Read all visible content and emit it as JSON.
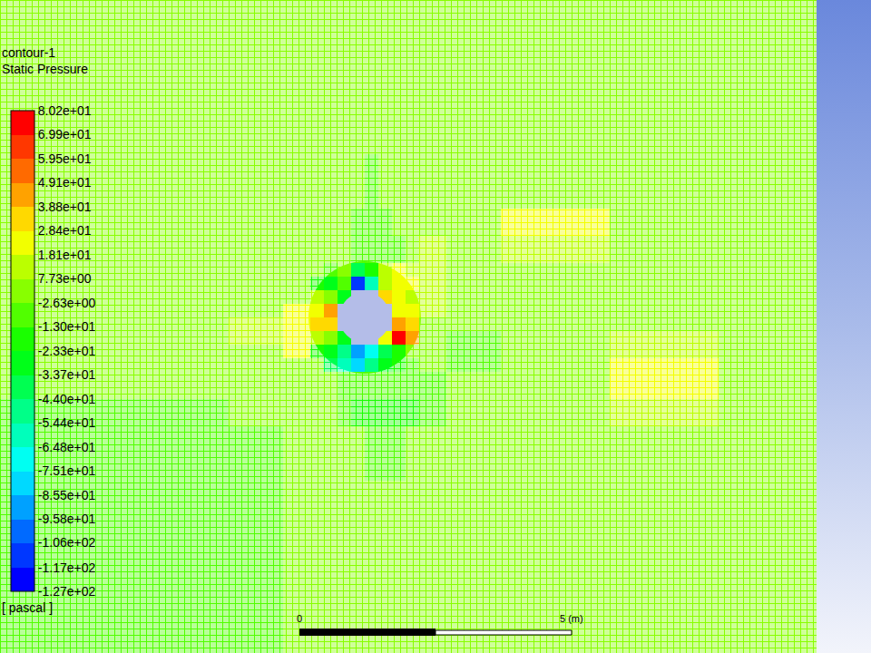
{
  "chart_data": {
    "type": "heatmap",
    "title": "contour-1",
    "subtitle": "Static Pressure",
    "x": [
      -6.7,
      -5.5,
      -4.5,
      -3.5,
      -2.5,
      -1.5,
      -1.0,
      -0.75,
      -0.5,
      -0.25,
      0,
      0.25,
      0.5,
      0.75,
      1.0,
      1.5,
      2.5,
      3.5,
      4.5,
      5.5,
      6.5,
      7.5,
      8.3
    ],
    "y": [
      -6.17,
      -5,
      -4,
      -3,
      -2,
      -1.5,
      -1.0,
      -0.75,
      -0.5,
      -0.25,
      0,
      0.25,
      0.5,
      0.75,
      1.0,
      1.5,
      2,
      3,
      4,
      5,
      5.83
    ],
    "cells": [
      [
        -5,
        -5,
        -5,
        -5,
        -3,
        3,
        3,
        3,
        3,
        3,
        3,
        3,
        3,
        3,
        3,
        3,
        3,
        3,
        3,
        3,
        3,
        3
      ],
      [
        -5,
        -5,
        -5,
        -5,
        -3,
        3,
        3,
        3,
        3,
        3,
        3,
        3,
        3,
        3,
        3,
        3,
        3,
        3,
        3,
        3,
        3,
        3
      ],
      [
        -5,
        -5,
        -5,
        -5,
        -3,
        3,
        3,
        3,
        3,
        3,
        3,
        3,
        3,
        3,
        3,
        3,
        3,
        3,
        3,
        3,
        3,
        3
      ],
      [
        -5,
        -5,
        -5,
        -5,
        -3,
        3,
        3,
        3,
        3,
        3,
        -8,
        -8,
        -8,
        3,
        3,
        3,
        3,
        3,
        3,
        3,
        3,
        3
      ],
      [
        -5,
        -5,
        -5,
        -5,
        3,
        3,
        3,
        3,
        -8,
        -15,
        -15,
        -15,
        -15,
        -15,
        -8,
        3,
        3,
        3,
        15,
        15,
        3,
        3
      ],
      [
        3,
        3,
        3,
        3,
        3,
        3,
        3,
        3,
        -5,
        -12,
        -12,
        -12,
        -12,
        -12,
        -5,
        3,
        3,
        3,
        20,
        20,
        3,
        3
      ],
      [
        3,
        3,
        3,
        3,
        3,
        3,
        3,
        -40,
        -60,
        -85,
        -50,
        -30,
        -20,
        -5,
        3,
        -6,
        3,
        3,
        20,
        20,
        3,
        3
      ],
      [
        3,
        3,
        3,
        3,
        3,
        20,
        -15,
        -30,
        -50,
        -95,
        -70,
        -40,
        -15,
        5,
        3,
        -12,
        3,
        3,
        15,
        15,
        3,
        3
      ],
      [
        3,
        3,
        3,
        3,
        12,
        20,
        10,
        0,
        -25,
        null,
        null,
        20,
        75,
        40,
        5,
        -12,
        3,
        3,
        10,
        10,
        3,
        3
      ],
      [
        3,
        3,
        3,
        3,
        12,
        20,
        30,
        35,
        null,
        null,
        null,
        null,
        45,
        30,
        5,
        3,
        3,
        3,
        3,
        3,
        3,
        3
      ],
      [
        3,
        3,
        3,
        3,
        3,
        20,
        25,
        40,
        null,
        null,
        null,
        null,
        25,
        20,
        8,
        3,
        3,
        3,
        3,
        3,
        3,
        3
      ],
      [
        3,
        3,
        3,
        3,
        3,
        3,
        15,
        5,
        -30,
        null,
        null,
        30,
        20,
        15,
        10,
        3,
        3,
        3,
        3,
        3,
        3,
        3
      ],
      [
        3,
        3,
        3,
        3,
        3,
        3,
        -15,
        -25,
        -5,
        -110,
        -60,
        15,
        25,
        20,
        15,
        3,
        3,
        3,
        3,
        3,
        3,
        3
      ],
      [
        3,
        3,
        3,
        3,
        3,
        3,
        3,
        -10,
        5,
        -40,
        -20,
        10,
        20,
        8,
        15,
        3,
        3,
        3,
        3,
        3,
        3,
        3
      ],
      [
        3,
        3,
        3,
        3,
        3,
        3,
        3,
        3,
        3,
        -6,
        -6,
        -6,
        -6,
        3,
        10,
        3,
        12,
        12,
        3,
        3,
        3,
        3
      ],
      [
        3,
        3,
        3,
        3,
        3,
        3,
        3,
        3,
        3,
        -10,
        -10,
        -10,
        3,
        3,
        3,
        3,
        20,
        20,
        3,
        3,
        3,
        3
      ],
      [
        3,
        3,
        3,
        3,
        3,
        3,
        3,
        3,
        3,
        3,
        -5,
        3,
        3,
        3,
        3,
        3,
        3,
        3,
        3,
        3,
        3,
        3
      ],
      [
        3,
        3,
        3,
        3,
        3,
        3,
        3,
        3,
        3,
        3,
        3,
        3,
        3,
        3,
        3,
        3,
        3,
        3,
        3,
        3,
        3,
        3
      ],
      [
        3,
        3,
        3,
        3,
        3,
        3,
        3,
        3,
        3,
        3,
        3,
        3,
        3,
        3,
        3,
        3,
        3,
        3,
        3,
        3,
        3,
        3
      ],
      [
        3,
        3,
        3,
        3,
        3,
        3,
        3,
        3,
        3,
        3,
        3,
        3,
        3,
        3,
        3,
        3,
        3,
        3,
        3,
        3,
        3,
        3
      ]
    ],
    "xlim": [
      -6.7,
      8.3
    ],
    "ylim": [
      -6.17,
      5.83
    ],
    "tick_labels": false,
    "colorbar": {
      "range": [
        -127,
        80.2
      ],
      "label": "[ pascal ]",
      "ticks": [
        {
          "value": 80.2,
          "label": "8.02e+01"
        },
        {
          "value": 69.9,
          "label": "6.99e+01"
        },
        {
          "value": 59.5,
          "label": "5.95e+01"
        },
        {
          "value": 49.1,
          "label": "4.91e+01"
        },
        {
          "value": 38.8,
          "label": "3.88e+01"
        },
        {
          "value": 28.4,
          "label": "2.84e+01"
        },
        {
          "value": 18.1,
          "label": "1.81e+01"
        },
        {
          "value": 7.73,
          "label": "7.73e+00"
        },
        {
          "value": -2.63,
          "label": "-2.63e+00"
        },
        {
          "value": -13.0,
          "label": "-1.30e+01"
        },
        {
          "value": -23.3,
          "label": "-2.33e+01"
        },
        {
          "value": -33.7,
          "label": "-3.37e+01"
        },
        {
          "value": -44.0,
          "label": "-4.40e+01"
        },
        {
          "value": -54.4,
          "label": "-5.44e+01"
        },
        {
          "value": -64.8,
          "label": "-6.48e+01"
        },
        {
          "value": -75.1,
          "label": "-7.51e+01"
        },
        {
          "value": -85.5,
          "label": "-8.55e+01"
        },
        {
          "value": -95.8,
          "label": "-9.58e+01"
        },
        {
          "value": -106,
          "label": "-1.06e+02"
        },
        {
          "value": -117,
          "label": "-1.17e+02"
        },
        {
          "value": -127,
          "label": "-1.27e+02"
        }
      ]
    },
    "scale_bar": {
      "ticks": [
        0,
        {
          "value": 5,
          "label": "5 (m)"
        }
      ]
    }
  }
}
